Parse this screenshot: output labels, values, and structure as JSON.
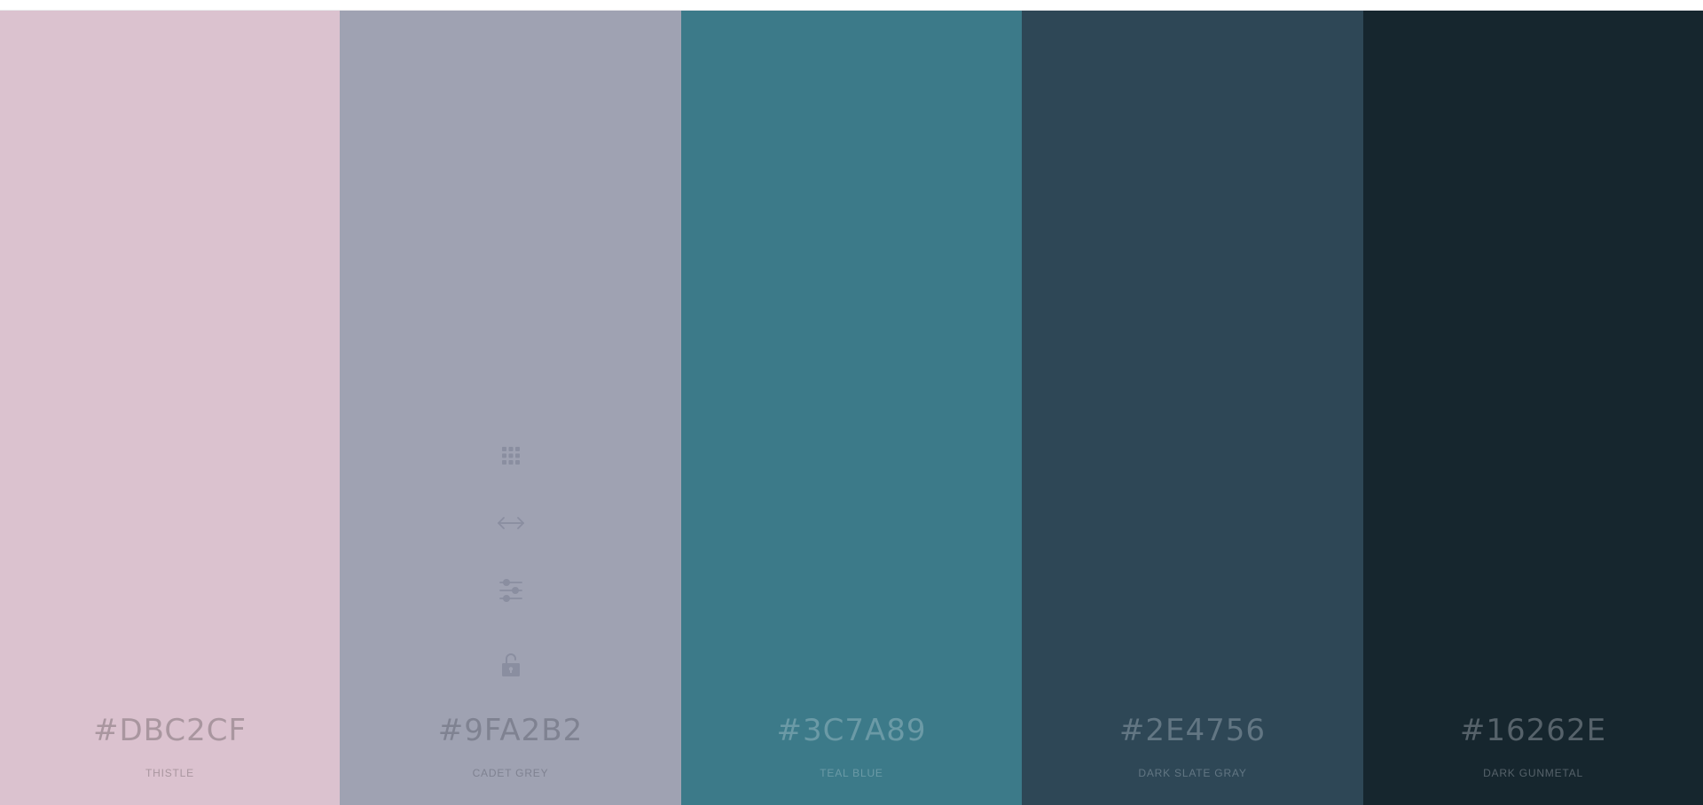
{
  "colors": {
    "icon": "#8a8ea0",
    "topbar_border": "#e9e9ec"
  },
  "palette": [
    {
      "hex": "#DBC2CF",
      "name": "THISTLE",
      "bg": "#DBC2CF",
      "fg": "#a9969f"
    },
    {
      "hex": "#9FA2B2",
      "name": "CADET GREY",
      "bg": "#9FA2B2",
      "fg": "#7f8291"
    },
    {
      "hex": "#3C7A89",
      "name": "TEAL BLUE",
      "bg": "#3C7A89",
      "fg": "#6b9aa6"
    },
    {
      "hex": "#2E4756",
      "name": "DARK SLATE GRAY",
      "bg": "#2E4756",
      "fg": "#627683"
    },
    {
      "hex": "#16262E",
      "name": "DARK GUNMETAL",
      "bg": "#16262E",
      "fg": "#56626a"
    }
  ],
  "tools": [
    {
      "icon": "view-shades-icon"
    },
    {
      "icon": "drag-arrows-icon"
    },
    {
      "icon": "adjust-sliders-icon"
    },
    {
      "icon": "lock-open-icon"
    }
  ]
}
